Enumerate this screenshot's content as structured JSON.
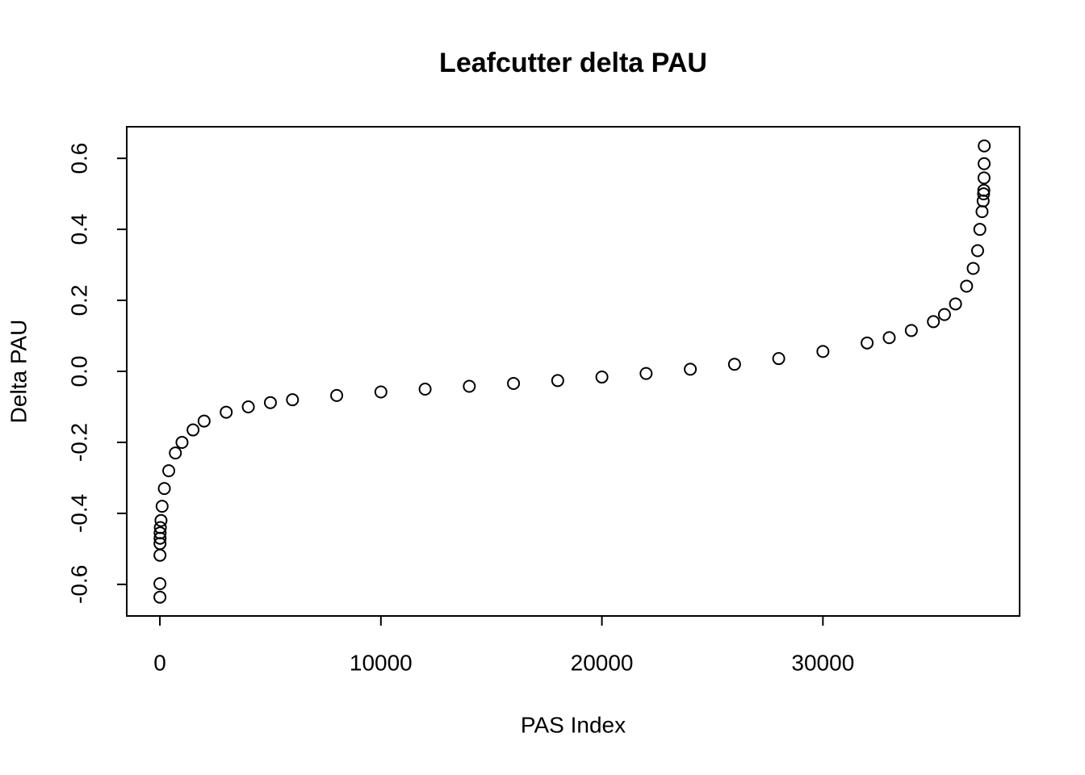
{
  "chart_data": {
    "type": "scatter",
    "title": "Leafcutter delta PAU",
    "x_label": "PAS Index",
    "y_label": "Delta PAU",
    "color": "#000000",
    "x": [
      1,
      2,
      3,
      5,
      8,
      10,
      20,
      50,
      100,
      200,
      400,
      700,
      1000,
      1500,
      2000,
      3000,
      4000,
      5000,
      6000,
      8000,
      10000,
      12000,
      14000,
      16000,
      18000,
      20000,
      22000,
      24000,
      26000,
      28000,
      30000,
      32000,
      33000,
      34000,
      35000,
      35500,
      36000,
      36500,
      36800,
      37000,
      37100,
      37200,
      37250,
      37270,
      37280,
      37290,
      37295,
      37300
    ],
    "values": [
      -0.636,
      -0.598,
      -0.518,
      -0.485,
      -0.47,
      -0.455,
      -0.44,
      -0.42,
      -0.38,
      -0.33,
      -0.28,
      -0.23,
      -0.2,
      -0.165,
      -0.14,
      -0.115,
      -0.1,
      -0.088,
      -0.08,
      -0.068,
      -0.058,
      -0.05,
      -0.042,
      -0.034,
      -0.026,
      -0.016,
      -0.006,
      0.006,
      0.02,
      0.036,
      0.056,
      0.08,
      0.095,
      0.115,
      0.14,
      0.16,
      0.19,
      0.24,
      0.29,
      0.34,
      0.4,
      0.45,
      0.48,
      0.5,
      0.51,
      0.545,
      0.585,
      0.635
    ],
    "xlim": [
      -1500,
      38900
    ],
    "ylim": [
      -0.689,
      0.689
    ],
    "xticks": [
      0,
      10000,
      20000,
      30000
    ],
    "yticks": [
      -0.6,
      -0.4,
      -0.2,
      {
        "value": 0,
        "label": "0.0"
      },
      0.2,
      0.4,
      0.6
    ]
  }
}
